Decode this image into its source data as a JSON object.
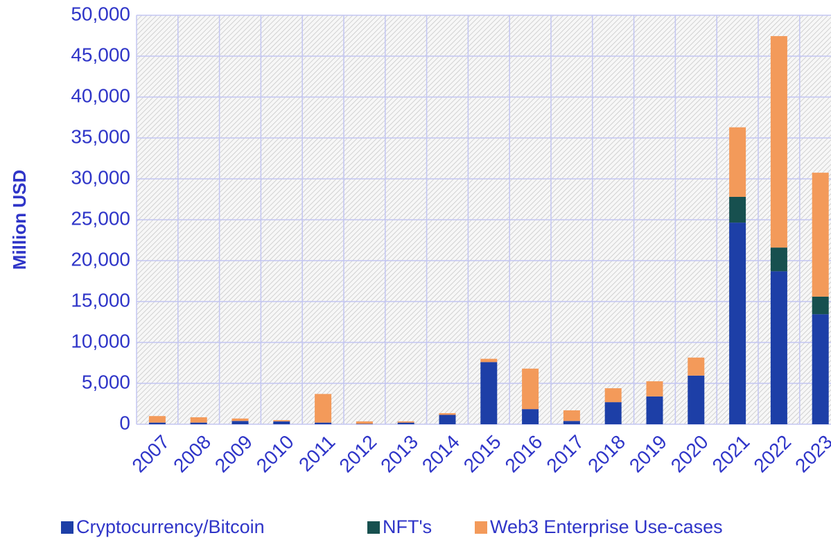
{
  "chart_data": {
    "type": "stacked_bar",
    "y_label": "Million USD",
    "categories": [
      "2007",
      "2008",
      "2009",
      "2010",
      "2011",
      "2012",
      "2013",
      "2014",
      "2015",
      "2016",
      "2017",
      "2018",
      "2019",
      "2020",
      "2021",
      "2022",
      "2023"
    ],
    "series": [
      {
        "name": "Cryptocurrency/Bitcoin",
        "color": "#1d3fa7",
        "values": [
          200,
          200,
          400,
          350,
          200,
          50,
          200,
          1150,
          7600,
          1850,
          400,
          2700,
          3400,
          5950,
          24650,
          18700,
          13450
        ]
      },
      {
        "name": "NFT's",
        "color": "#17504f",
        "values": [
          0,
          0,
          0,
          0,
          0,
          0,
          0,
          0,
          0,
          0,
          0,
          0,
          0,
          0,
          3150,
          2900,
          2150
        ]
      },
      {
        "name": "Web3 Enterprise Use-cases",
        "color": "#f39a5a",
        "values": [
          800,
          650,
          300,
          150,
          3500,
          300,
          150,
          200,
          400,
          4950,
          1300,
          1700,
          1850,
          2200,
          8500,
          25850,
          15150
        ]
      }
    ],
    "ylim": [
      0,
      50000
    ],
    "yticks": [
      0,
      {
        "value": 5000,
        "label": "5,000"
      },
      {
        "value": 10000,
        "label": "10,000"
      },
      {
        "value": 15000,
        "label": "15,000"
      },
      {
        "value": 20000,
        "label": "20,000"
      },
      {
        "value": 25000,
        "label": "25,000"
      },
      {
        "value": 30000,
        "label": "30,000"
      },
      {
        "value": 35000,
        "label": "35,000"
      },
      {
        "value": 40000,
        "label": "40,000"
      },
      {
        "value": 45000,
        "label": "45,000"
      },
      {
        "value": 50000,
        "label": "50,000"
      }
    ],
    "grid": true,
    "legend": "bottom"
  }
}
